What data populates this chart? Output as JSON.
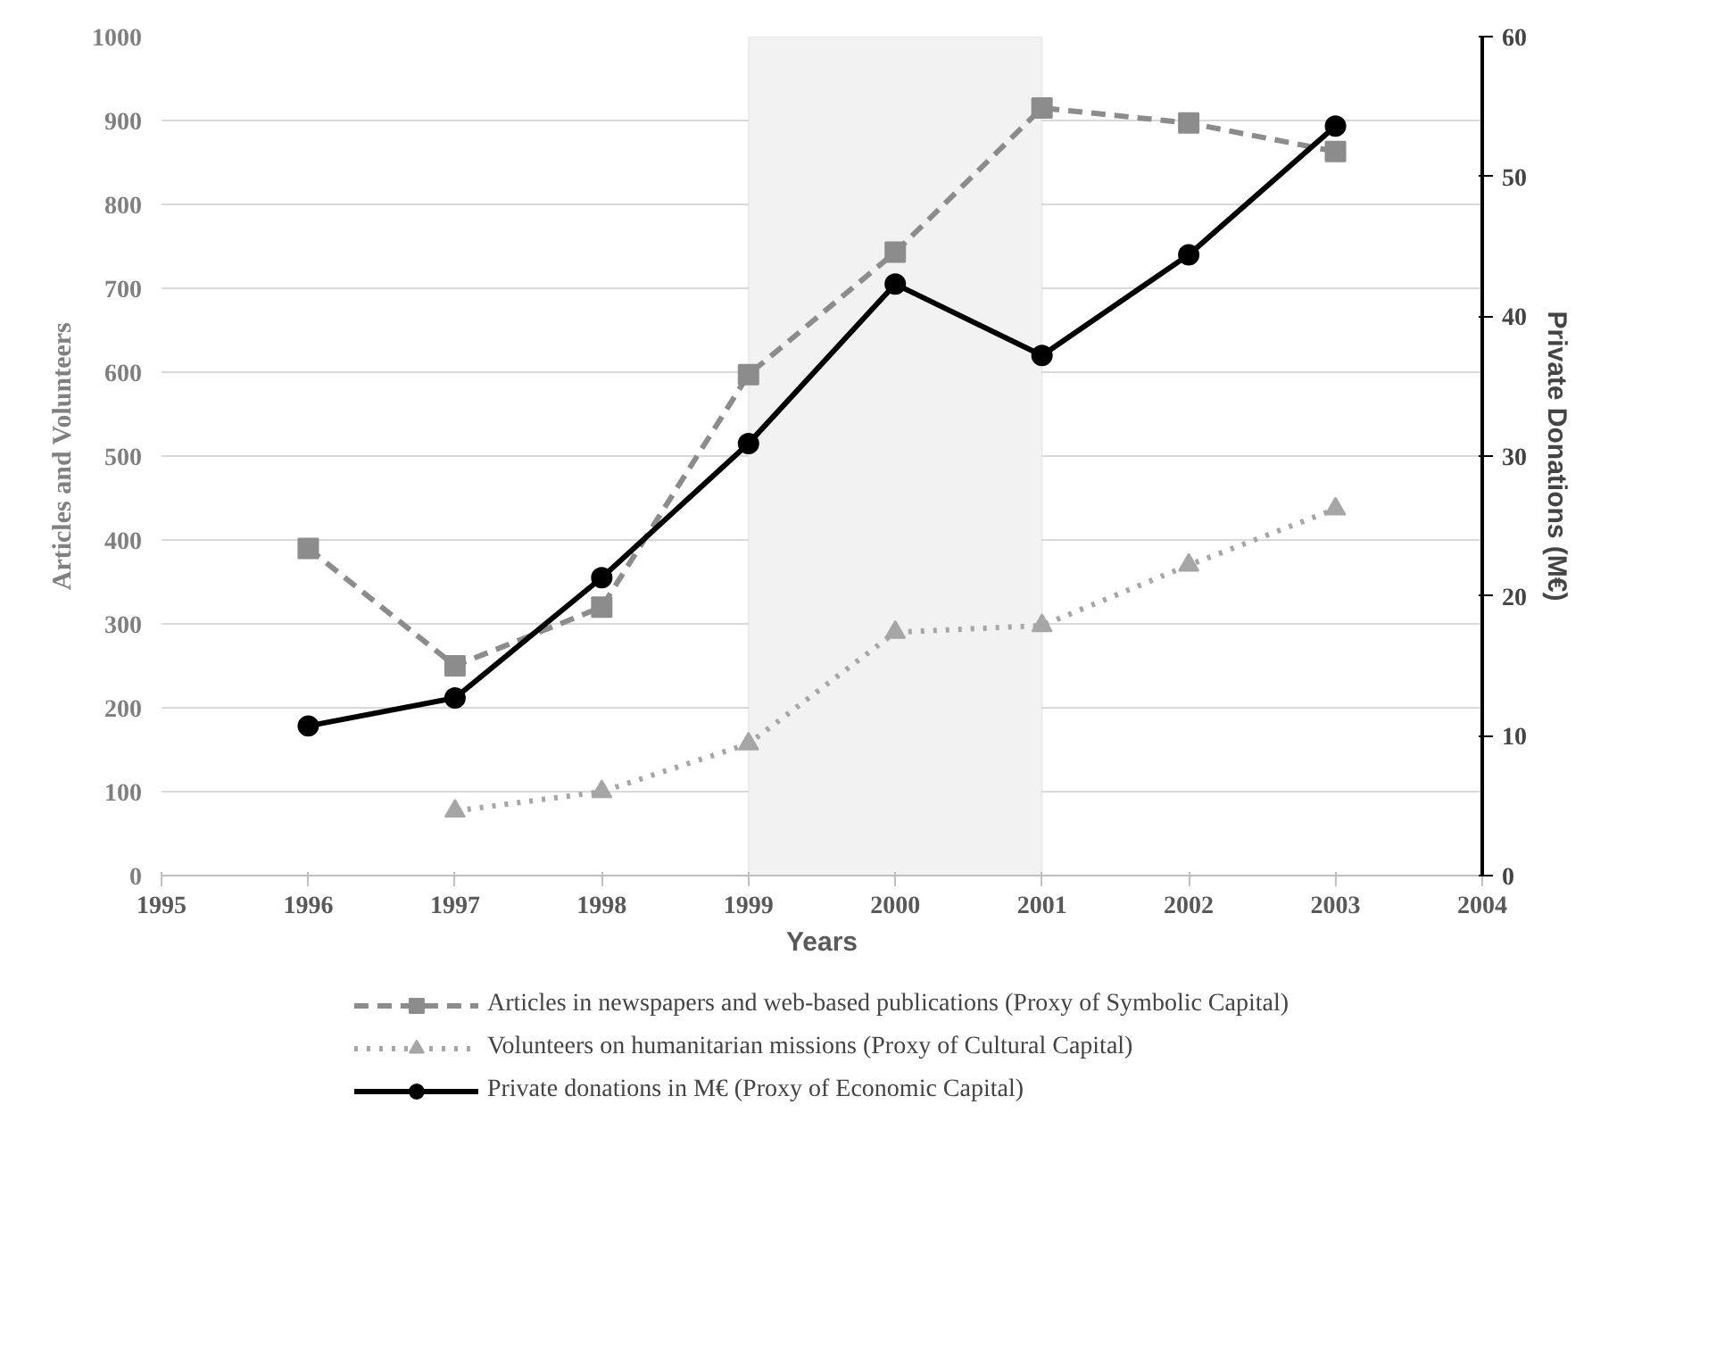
{
  "chart_data": {
    "type": "line",
    "xlabel": "Years",
    "ylabel": "Articles and Volunteers",
    "y2label": "Private Donations (M€)",
    "x": [
      1996,
      1997,
      1998,
      1999,
      2000,
      2001,
      2002,
      2003
    ],
    "xlim": [
      1995,
      2004
    ],
    "xticks": [
      1995,
      1996,
      1997,
      1998,
      1999,
      2000,
      2001,
      2002,
      2003,
      2004
    ],
    "ylim": [
      0,
      1000
    ],
    "yticks": [
      0,
      100,
      200,
      300,
      400,
      500,
      600,
      700,
      800,
      900,
      1000
    ],
    "y2lim": [
      0,
      60
    ],
    "y2ticks": [
      0,
      10,
      20,
      30,
      40,
      50,
      60
    ],
    "grid": "y",
    "legend": "bottom",
    "bands": [
      {
        "axis": "x",
        "from": 1999,
        "to": 2001,
        "color": "#f2f2f2"
      }
    ],
    "series": [
      {
        "name": "Articles in newspapers and web-based publications (Proxy of Symbolic Capital)",
        "color": "#8c8c8c",
        "marker": "square",
        "line_style": "dashed",
        "values": [
          390,
          250,
          320,
          597,
          743,
          915,
          897,
          863
        ]
      },
      {
        "name": "Volunteers on humanitarian missions (Proxy of Cultural Capital)",
        "color": "#a6a6a6",
        "marker": "triangle",
        "line_style": "dotted",
        "values": [
          null,
          77,
          100,
          157,
          290,
          298,
          370,
          437
        ]
      },
      {
        "name": "Private donations in M€ (Proxy of Economic Capital)",
        "color": "#000000",
        "marker": "circle",
        "line_style": "solid",
        "axis": "y2",
        "values": [
          10.7,
          12.7,
          21.3,
          30.9,
          42.3,
          37.2,
          44.4,
          53.6
        ]
      }
    ]
  }
}
